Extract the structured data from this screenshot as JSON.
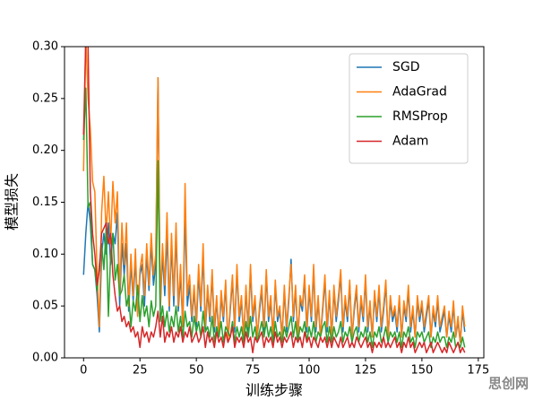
{
  "chart_data": {
    "type": "line",
    "x_label": "训练步骤",
    "y_label": "模型损失",
    "watermark": "思创网",
    "legend": "upper right",
    "xlim": [
      -8.45,
      177.45
    ],
    "ylim": [
      0,
      0.3
    ],
    "xticks": [
      0,
      25,
      50,
      75,
      100,
      125,
      150,
      175
    ],
    "yticks": [
      {
        "value": 0,
        "label": "0.00"
      },
      0.05,
      {
        "value": 0.1,
        "label": "0.10"
      },
      0.15,
      {
        "value": 0.2,
        "label": "0.20"
      },
      0.25,
      {
        "value": 0.3,
        "label": "0.30"
      }
    ],
    "x": [
      0,
      1,
      2,
      3,
      4,
      5,
      6,
      7,
      8,
      9,
      10,
      11,
      12,
      13,
      14,
      15,
      16,
      17,
      18,
      19,
      20,
      21,
      22,
      23,
      24,
      25,
      26,
      27,
      28,
      29,
      30,
      31,
      32,
      33,
      34,
      35,
      36,
      37,
      38,
      39,
      40,
      41,
      42,
      43,
      44,
      45,
      46,
      47,
      48,
      49,
      50,
      51,
      52,
      53,
      54,
      55,
      56,
      57,
      58,
      59,
      60,
      61,
      62,
      63,
      64,
      65,
      66,
      67,
      68,
      69,
      70,
      71,
      72,
      73,
      74,
      75,
      76,
      77,
      78,
      79,
      80,
      81,
      82,
      83,
      84,
      85,
      86,
      87,
      88,
      89,
      90,
      91,
      92,
      93,
      94,
      95,
      96,
      97,
      98,
      99,
      100,
      101,
      102,
      103,
      104,
      105,
      106,
      107,
      108,
      109,
      110,
      111,
      112,
      113,
      114,
      115,
      116,
      117,
      118,
      119,
      120,
      121,
      122,
      123,
      124,
      125,
      126,
      127,
      128,
      129,
      130,
      131,
      132,
      133,
      134,
      135,
      136,
      137,
      138,
      139,
      140,
      141,
      142,
      143,
      144,
      145,
      146,
      147,
      148,
      149,
      150,
      151,
      152,
      153,
      154,
      155,
      156,
      157,
      158,
      159,
      160,
      161,
      162,
      163,
      164,
      165,
      166,
      167,
      168,
      169
    ],
    "series": [
      {
        "name": "SGD",
        "color": "#1f77b4",
        "values": [
          0.08,
          0.12,
          0.15,
          0.13,
          0.09,
          0.085,
          0.06,
          0.025,
          0.1,
          0.12,
          0.1,
          0.13,
          0.09,
          0.12,
          0.11,
          0.14,
          0.05,
          0.11,
          0.08,
          0.11,
          0.045,
          0.09,
          0.055,
          0.095,
          0.04,
          0.08,
          0.09,
          0.05,
          0.1,
          0.065,
          0.11,
          0.07,
          0.09,
          0.27,
          0.045,
          0.1,
          0.06,
          0.12,
          0.045,
          0.11,
          0.05,
          0.12,
          0.045,
          0.08,
          0.03,
          0.14,
          0.05,
          0.07,
          0.035,
          0.065,
          0.03,
          0.08,
          0.045,
          0.1,
          0.025,
          0.065,
          0.035,
          0.08,
          0.025,
          0.055,
          0.02,
          0.06,
          0.035,
          0.07,
          0.015,
          0.045,
          0.075,
          0.025,
          0.085,
          0.035,
          0.055,
          0.02,
          0.065,
          0.025,
          0.085,
          0.035,
          0.055,
          0.02,
          0.045,
          0.065,
          0.025,
          0.08,
          0.035,
          0.055,
          0.02,
          0.07,
          0.035,
          0.045,
          0.02,
          0.065,
          0.025,
          0.055,
          0.095,
          0.035,
          0.065,
          0.02,
          0.055,
          0.045,
          0.075,
          0.025,
          0.065,
          0.035,
          0.085,
          0.025,
          0.055,
          0.02,
          0.045,
          0.075,
          0.025,
          0.06,
          0.02,
          0.065,
          0.035,
          0.055,
          0.08,
          0.025,
          0.055,
          0.035,
          0.07,
          0.02,
          0.045,
          0.065,
          0.025,
          0.055,
          0.035,
          0.075,
          0.025,
          0.05,
          0.02,
          0.06,
          0.035,
          0.065,
          0.025,
          0.045,
          0.07,
          0.02,
          0.055,
          0.035,
          0.045,
          0.025,
          0.055,
          0.02,
          0.05,
          0.035,
          0.065,
          0.025,
          0.045,
          0.02,
          0.055,
          0.035,
          0.05,
          0.025,
          0.04,
          0.055,
          0.02,
          0.045,
          0.03,
          0.055,
          0.025,
          0.035,
          0.045,
          0.02,
          0.04,
          0.025,
          0.05,
          0.02,
          0.035,
          0.015,
          0.045,
          0.025
        ]
      },
      {
        "name": "AdaGrad",
        "color": "#ff7f0e",
        "values": [
          0.18,
          0.31,
          0.25,
          0.22,
          0.17,
          0.16,
          0.08,
          0.03,
          0.14,
          0.175,
          0.12,
          0.16,
          0.11,
          0.17,
          0.13,
          0.16,
          0.06,
          0.13,
          0.09,
          0.13,
          0.05,
          0.1,
          0.06,
          0.105,
          0.04,
          0.085,
          0.1,
          0.06,
          0.11,
          0.07,
          0.12,
          0.08,
          0.1,
          0.27,
          0.05,
          0.11,
          0.07,
          0.14,
          0.05,
          0.12,
          0.06,
          0.13,
          0.05,
          0.09,
          0.03,
          0.168,
          0.06,
          0.08,
          0.04,
          0.07,
          0.035,
          0.09,
          0.05,
          0.11,
          0.03,
          0.07,
          0.04,
          0.085,
          0.03,
          0.06,
          0.02,
          0.065,
          0.04,
          0.075,
          0.015,
          0.05,
          0.08,
          0.03,
          0.09,
          0.04,
          0.06,
          0.02,
          0.07,
          0.03,
          0.09,
          0.04,
          0.06,
          0.02,
          0.05,
          0.07,
          0.03,
          0.085,
          0.04,
          0.06,
          0.02,
          0.075,
          0.04,
          0.05,
          0.02,
          0.07,
          0.03,
          0.06,
          0.09,
          0.04,
          0.07,
          0.02,
          0.06,
          0.05,
          0.08,
          0.03,
          0.07,
          0.04,
          0.09,
          0.03,
          0.06,
          0.02,
          0.05,
          0.08,
          0.03,
          0.065,
          0.02,
          0.07,
          0.04,
          0.06,
          0.085,
          0.03,
          0.06,
          0.04,
          0.075,
          0.02,
          0.05,
          0.07,
          0.03,
          0.06,
          0.04,
          0.08,
          0.03,
          0.055,
          0.02,
          0.065,
          0.04,
          0.07,
          0.03,
          0.05,
          0.075,
          0.02,
          0.06,
          0.04,
          0.05,
          0.03,
          0.06,
          0.02,
          0.055,
          0.04,
          0.07,
          0.03,
          0.05,
          0.02,
          0.06,
          0.04,
          0.055,
          0.03,
          0.045,
          0.06,
          0.02,
          0.05,
          0.035,
          0.06,
          0.03,
          0.04,
          0.05,
          0.02,
          0.045,
          0.03,
          0.055,
          0.02,
          0.04,
          0.015,
          0.05,
          0.03
        ]
      },
      {
        "name": "RMSProp",
        "color": "#2ca02c",
        "values": [
          0.21,
          0.26,
          0.145,
          0.15,
          0.09,
          0.085,
          0.065,
          0.09,
          0.11,
          0.085,
          0.125,
          0.04,
          0.1,
          0.12,
          0.075,
          0.09,
          0.06,
          0.065,
          0.08,
          0.05,
          0.06,
          0.03,
          0.055,
          0.045,
          0.07,
          0.035,
          0.06,
          0.04,
          0.05,
          0.03,
          0.055,
          0.04,
          0.05,
          0.19,
          0.035,
          0.05,
          0.03,
          0.045,
          0.025,
          0.04,
          0.03,
          0.05,
          0.025,
          0.04,
          0.02,
          0.045,
          0.03,
          0.035,
          0.02,
          0.04,
          0.025,
          0.035,
          0.02,
          0.045,
          0.025,
          0.03,
          0.02,
          0.04,
          0.015,
          0.03,
          0.02,
          0.035,
          0.015,
          0.03,
          0.025,
          0.02,
          0.035,
          0.015,
          0.03,
          0.02,
          0.03,
          0.015,
          0.035,
          0.02,
          0.04,
          0.02,
          0.03,
          0.015,
          0.025,
          0.035,
          0.02,
          0.035,
          0.02,
          0.03,
          0.015,
          0.035,
          0.02,
          0.025,
          0.015,
          0.03,
          0.02,
          0.03,
          0.04,
          0.02,
          0.035,
          0.015,
          0.03,
          0.025,
          0.035,
          0.015,
          0.03,
          0.02,
          0.035,
          0.015,
          0.025,
          0.02,
          0.03,
          0.035,
          0.015,
          0.03,
          0.015,
          0.03,
          0.02,
          0.025,
          0.035,
          0.015,
          0.025,
          0.02,
          0.03,
          0.015,
          0.025,
          0.03,
          0.015,
          0.025,
          0.02,
          0.03,
          0.015,
          0.025,
          0.01,
          0.025,
          0.02,
          0.03,
          0.015,
          0.02,
          0.03,
          0.015,
          0.025,
          0.02,
          0.025,
          0.015,
          0.025,
          0.01,
          0.025,
          0.02,
          0.03,
          0.015,
          0.02,
          0.01,
          0.025,
          0.02,
          0.025,
          0.015,
          0.02,
          0.025,
          0.01,
          0.02,
          0.015,
          0.025,
          0.015,
          0.02,
          0.02,
          0.01,
          0.02,
          0.015,
          0.025,
          0.01,
          0.015,
          0.01,
          0.02,
          0.01
        ]
      },
      {
        "name": "Adam",
        "color": "#d62728",
        "values": [
          0.215,
          0.31,
          0.3,
          0.16,
          0.12,
          0.1,
          0.07,
          0.085,
          0.12,
          0.125,
          0.13,
          0.11,
          0.12,
          0.08,
          0.06,
          0.045,
          0.05,
          0.035,
          0.04,
          0.03,
          0.035,
          0.025,
          0.03,
          0.02,
          0.025,
          0.01,
          0.03,
          0.02,
          0.025,
          0.015,
          0.025,
          0.02,
          0.03,
          0.045,
          0.02,
          0.04,
          0.015,
          0.025,
          0.02,
          0.03,
          0.015,
          0.025,
          0.02,
          0.03,
          0.015,
          0.025,
          0.02,
          0.03,
          0.015,
          0.02,
          0.025,
          0.015,
          0.02,
          0.03,
          0.01,
          0.025,
          0.015,
          0.02,
          0.01,
          0.025,
          0.015,
          0.02,
          0.01,
          0.025,
          0.015,
          0.02,
          0.03,
          0.01,
          0.02,
          0.015,
          0.02,
          0.01,
          0.025,
          0.015,
          0.02,
          0.005,
          0.02,
          0.015,
          0.02,
          0.025,
          0.01,
          0.02,
          0.015,
          0.02,
          0.01,
          0.025,
          0.015,
          0.02,
          0.01,
          0.02,
          0.015,
          0.02,
          0.025,
          0.01,
          0.02,
          0.015,
          0.02,
          0.01,
          0.025,
          0.015,
          0.02,
          0.01,
          0.02,
          0.015,
          0.01,
          0.02,
          0.015,
          0.02,
          0.01,
          0.02,
          0.01,
          0.02,
          0.015,
          0.01,
          0.02,
          0.01,
          0.015,
          0.02,
          0.01,
          0.015,
          0.01,
          0.02,
          0.015,
          0.01,
          0.015,
          0.02,
          0.01,
          0.015,
          0.005,
          0.015,
          0.01,
          0.015,
          0.01,
          0.02,
          0.01,
          0.015,
          0.01,
          0.015,
          0.02,
          0.01,
          0.015,
          0.005,
          0.015,
          0.01,
          0.02,
          0.01,
          0.015,
          0.005,
          0.01,
          0.015,
          0.01,
          0.015,
          0.005,
          0.01,
          0.015,
          0.005,
          0.01,
          0.015,
          0.01,
          0.005,
          0.01,
          0.005,
          0.015,
          0.01,
          0.005,
          0.01,
          0.015,
          0.005,
          0.01,
          0.005
        ]
      }
    ]
  }
}
